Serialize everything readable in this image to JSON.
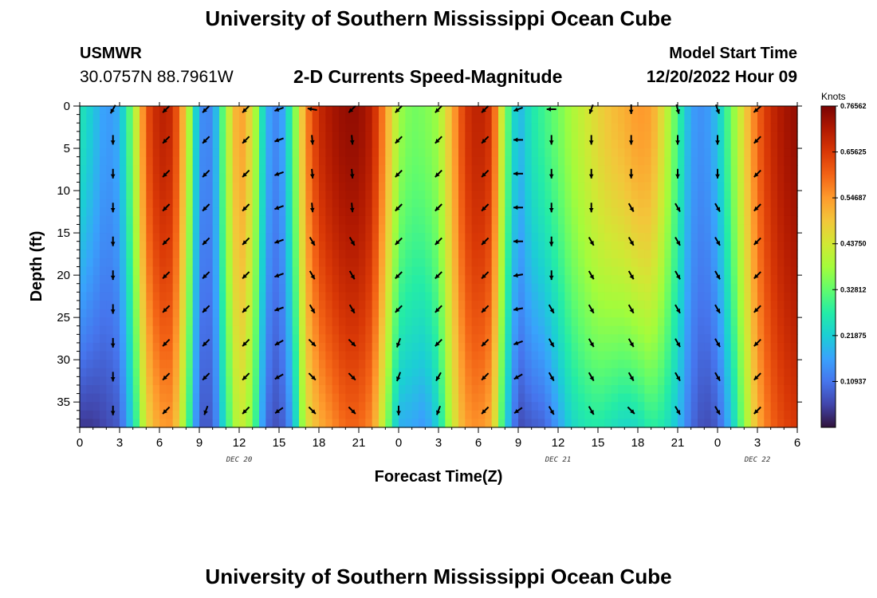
{
  "page": {
    "main_title": "University of Southern Mississippi Ocean Cube",
    "bottom_title": "University of Southern Mississippi Ocean Cube",
    "station_id": "USMWR",
    "coordinates": "30.0757N  88.7961W",
    "panel_title": "2-D Currents Speed-Magnitude",
    "model_start_label": "Model Start Time",
    "model_start_value": "12/20/2022 Hour 09"
  },
  "chart_data": {
    "type": "heatmap",
    "title": "2-D Currents Speed-Magnitude",
    "xlabel": "Forecast Time(Z)",
    "ylabel": "Depth (ft)",
    "x_range_hours": [
      0,
      54
    ],
    "y_range_ft": [
      0,
      38
    ],
    "x_tick_hours": [
      0,
      3,
      6,
      9,
      12,
      15,
      18,
      21,
      24,
      27,
      30,
      33,
      36,
      39,
      42,
      45,
      48,
      51,
      54
    ],
    "x_tick_labels": [
      "0",
      "3",
      "6",
      "9",
      "12",
      "15",
      "18",
      "21",
      "0",
      "3",
      "6",
      "9",
      "12",
      "15",
      "18",
      "21",
      "0",
      "3",
      "6"
    ],
    "y_ticks": [
      0,
      5,
      10,
      15,
      20,
      25,
      30,
      35
    ],
    "y_tick_labels": [
      "0",
      "5",
      "10",
      "15",
      "20",
      "25",
      "30",
      "35"
    ],
    "date_labels": [
      {
        "hour": 12,
        "text": "DEC 20"
      },
      {
        "hour": 36,
        "text": "DEC 21"
      },
      {
        "hour": 51,
        "text": "DEC 22"
      }
    ],
    "colorbar": {
      "title": "Knots",
      "min": 0,
      "max": 0.765625,
      "tick_values": [
        0.765625,
        0.65625,
        0.546875,
        0.4375,
        0.328125,
        0.21875,
        0.109375
      ],
      "tick_labels": [
        "0.76562",
        "0.65625",
        "0.54687",
        "0.43750",
        "0.32812",
        "0.21875",
        "0.10937"
      ],
      "colors": [
        "#30123b",
        "#4145ab",
        "#4675ed",
        "#39a2fc",
        "#1bcfd4",
        "#24eca6",
        "#61fc6c",
        "#a4fc3b",
        "#d1e834",
        "#f3c63a",
        "#fe9b2d",
        "#f36315",
        "#d93806",
        "#b11901",
        "#7a0403"
      ]
    },
    "speed_profile": {
      "hours": [
        0,
        1,
        2,
        3,
        4,
        5,
        6,
        7,
        8,
        9,
        10,
        11,
        12,
        13,
        14,
        15,
        16,
        17,
        18,
        19,
        20,
        21,
        22,
        23,
        24,
        25,
        26,
        27,
        28,
        29,
        30,
        31,
        32,
        33,
        34,
        35,
        36,
        37,
        38,
        39,
        40,
        41,
        42,
        43,
        44,
        45,
        46,
        47,
        48,
        49,
        50,
        51,
        52,
        53,
        54
      ],
      "surface_knots": [
        0.26,
        0.21,
        0.15,
        0.18,
        0.36,
        0.62,
        0.7,
        0.68,
        0.47,
        0.14,
        0.13,
        0.38,
        0.56,
        0.45,
        0.18,
        0.12,
        0.3,
        0.56,
        0.68,
        0.72,
        0.74,
        0.74,
        0.7,
        0.55,
        0.38,
        0.34,
        0.35,
        0.38,
        0.52,
        0.66,
        0.7,
        0.66,
        0.36,
        0.18,
        0.26,
        0.3,
        0.34,
        0.39,
        0.43,
        0.47,
        0.5,
        0.52,
        0.55,
        0.54,
        0.44,
        0.3,
        0.16,
        0.14,
        0.2,
        0.34,
        0.47,
        0.6,
        0.68,
        0.72,
        0.74
      ],
      "bottom_knots": [
        0.04,
        0.04,
        0.06,
        0.08,
        0.23,
        0.46,
        0.54,
        0.55,
        0.35,
        0.08,
        0.08,
        0.27,
        0.44,
        0.35,
        0.1,
        0.06,
        0.16,
        0.44,
        0.52,
        0.56,
        0.6,
        0.6,
        0.56,
        0.38,
        0.18,
        0.17,
        0.15,
        0.23,
        0.42,
        0.54,
        0.56,
        0.52,
        0.24,
        0.06,
        0.08,
        0.09,
        0.16,
        0.23,
        0.26,
        0.27,
        0.25,
        0.23,
        0.24,
        0.28,
        0.26,
        0.2,
        0.1,
        0.06,
        0.08,
        0.2,
        0.36,
        0.52,
        0.6,
        0.64,
        0.66
      ]
    },
    "vectors": {
      "hours": [
        2.5,
        6.5,
        9.5,
        12.5,
        15.0,
        17.5,
        20.5,
        24.0,
        27.0,
        30.5,
        33.0,
        35.5,
        38.5,
        41.5,
        45.0,
        48.0,
        51.0
      ],
      "depths_ft": [
        0,
        4,
        8,
        12,
        16,
        20,
        24,
        28,
        32,
        36
      ],
      "direction_deg": [
        [
          210,
          225,
          225,
          225,
          250,
          280,
          225,
          225,
          225,
          225,
          250,
          270,
          200,
          180,
          165,
          160,
          230
        ],
        [
          180,
          225,
          225,
          225,
          250,
          175,
          175,
          225,
          225,
          225,
          270,
          180,
          180,
          180,
          180,
          180,
          225
        ],
        [
          180,
          225,
          225,
          225,
          250,
          175,
          175,
          225,
          225,
          225,
          270,
          180,
          180,
          180,
          180,
          180,
          225
        ],
        [
          180,
          225,
          225,
          225,
          250,
          175,
          175,
          225,
          225,
          225,
          270,
          180,
          180,
          150,
          150,
          150,
          225
        ],
        [
          180,
          225,
          225,
          225,
          250,
          150,
          150,
          225,
          225,
          225,
          270,
          180,
          150,
          150,
          150,
          150,
          225
        ],
        [
          180,
          225,
          225,
          225,
          250,
          150,
          150,
          225,
          225,
          225,
          260,
          180,
          150,
          150,
          150,
          150,
          225
        ],
        [
          180,
          225,
          225,
          225,
          250,
          150,
          150,
          225,
          225,
          225,
          260,
          150,
          150,
          150,
          150,
          150,
          225
        ],
        [
          180,
          225,
          225,
          225,
          240,
          135,
          135,
          200,
          225,
          225,
          250,
          150,
          150,
          150,
          150,
          150,
          225
        ],
        [
          180,
          225,
          225,
          225,
          240,
          135,
          135,
          200,
          210,
          225,
          240,
          150,
          150,
          150,
          150,
          150,
          225
        ],
        [
          180,
          225,
          200,
          225,
          235,
          135,
          135,
          180,
          200,
          225,
          235,
          150,
          150,
          135,
          150,
          150,
          225
        ]
      ]
    }
  }
}
